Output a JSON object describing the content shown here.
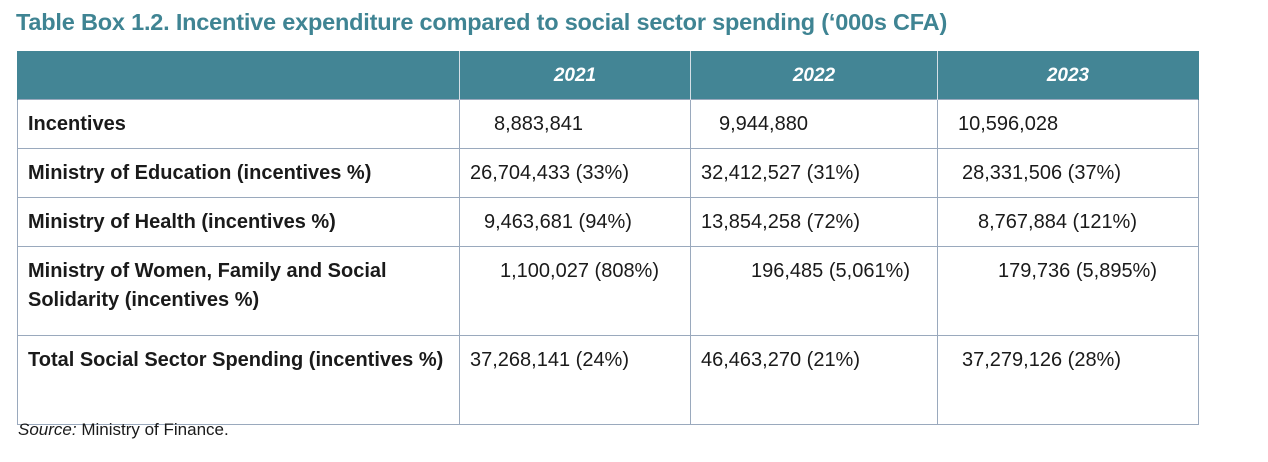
{
  "title": "Table Box 1.2. Incentive expenditure compared to social sector spending (‘000s CFA)",
  "table": {
    "headers": [
      "",
      "2021",
      "2022",
      "2023"
    ],
    "rows": [
      {
        "label": "Incentives",
        "values": [
          "8,883,841",
          "9,944,880",
          "10,596,028"
        ]
      },
      {
        "label": "Ministry of Education (incentives %)",
        "values": [
          "26,704,433 (33%)",
          "32,412,527 (31%)",
          "28,331,506 (37%)"
        ]
      },
      {
        "label": "Ministry of Health (incentives %)",
        "values": [
          "9,463,681 (94%)",
          "13,854,258 (72%)",
          "8,767,884 (121%)"
        ]
      },
      {
        "label": "Ministry of Women, Family and Social Solidarity (incentives %)",
        "values": [
          "1,100,027 (808%)",
          "196,485 (5,061%)",
          "179,736 (5,895%)"
        ]
      },
      {
        "label": "Total Social Sector Spending (incentives %)",
        "values": [
          "37,268,141 (24%)",
          "46,463,270 (21%)",
          "37,279,126 (28%)"
        ]
      }
    ]
  },
  "source": {
    "prefix": "Source:",
    "text": " Ministry of Finance."
  },
  "colors": {
    "title": "#3f8493",
    "header_bg": "#438595",
    "header_text": "#ffffff",
    "border": "#9aa9bd"
  }
}
